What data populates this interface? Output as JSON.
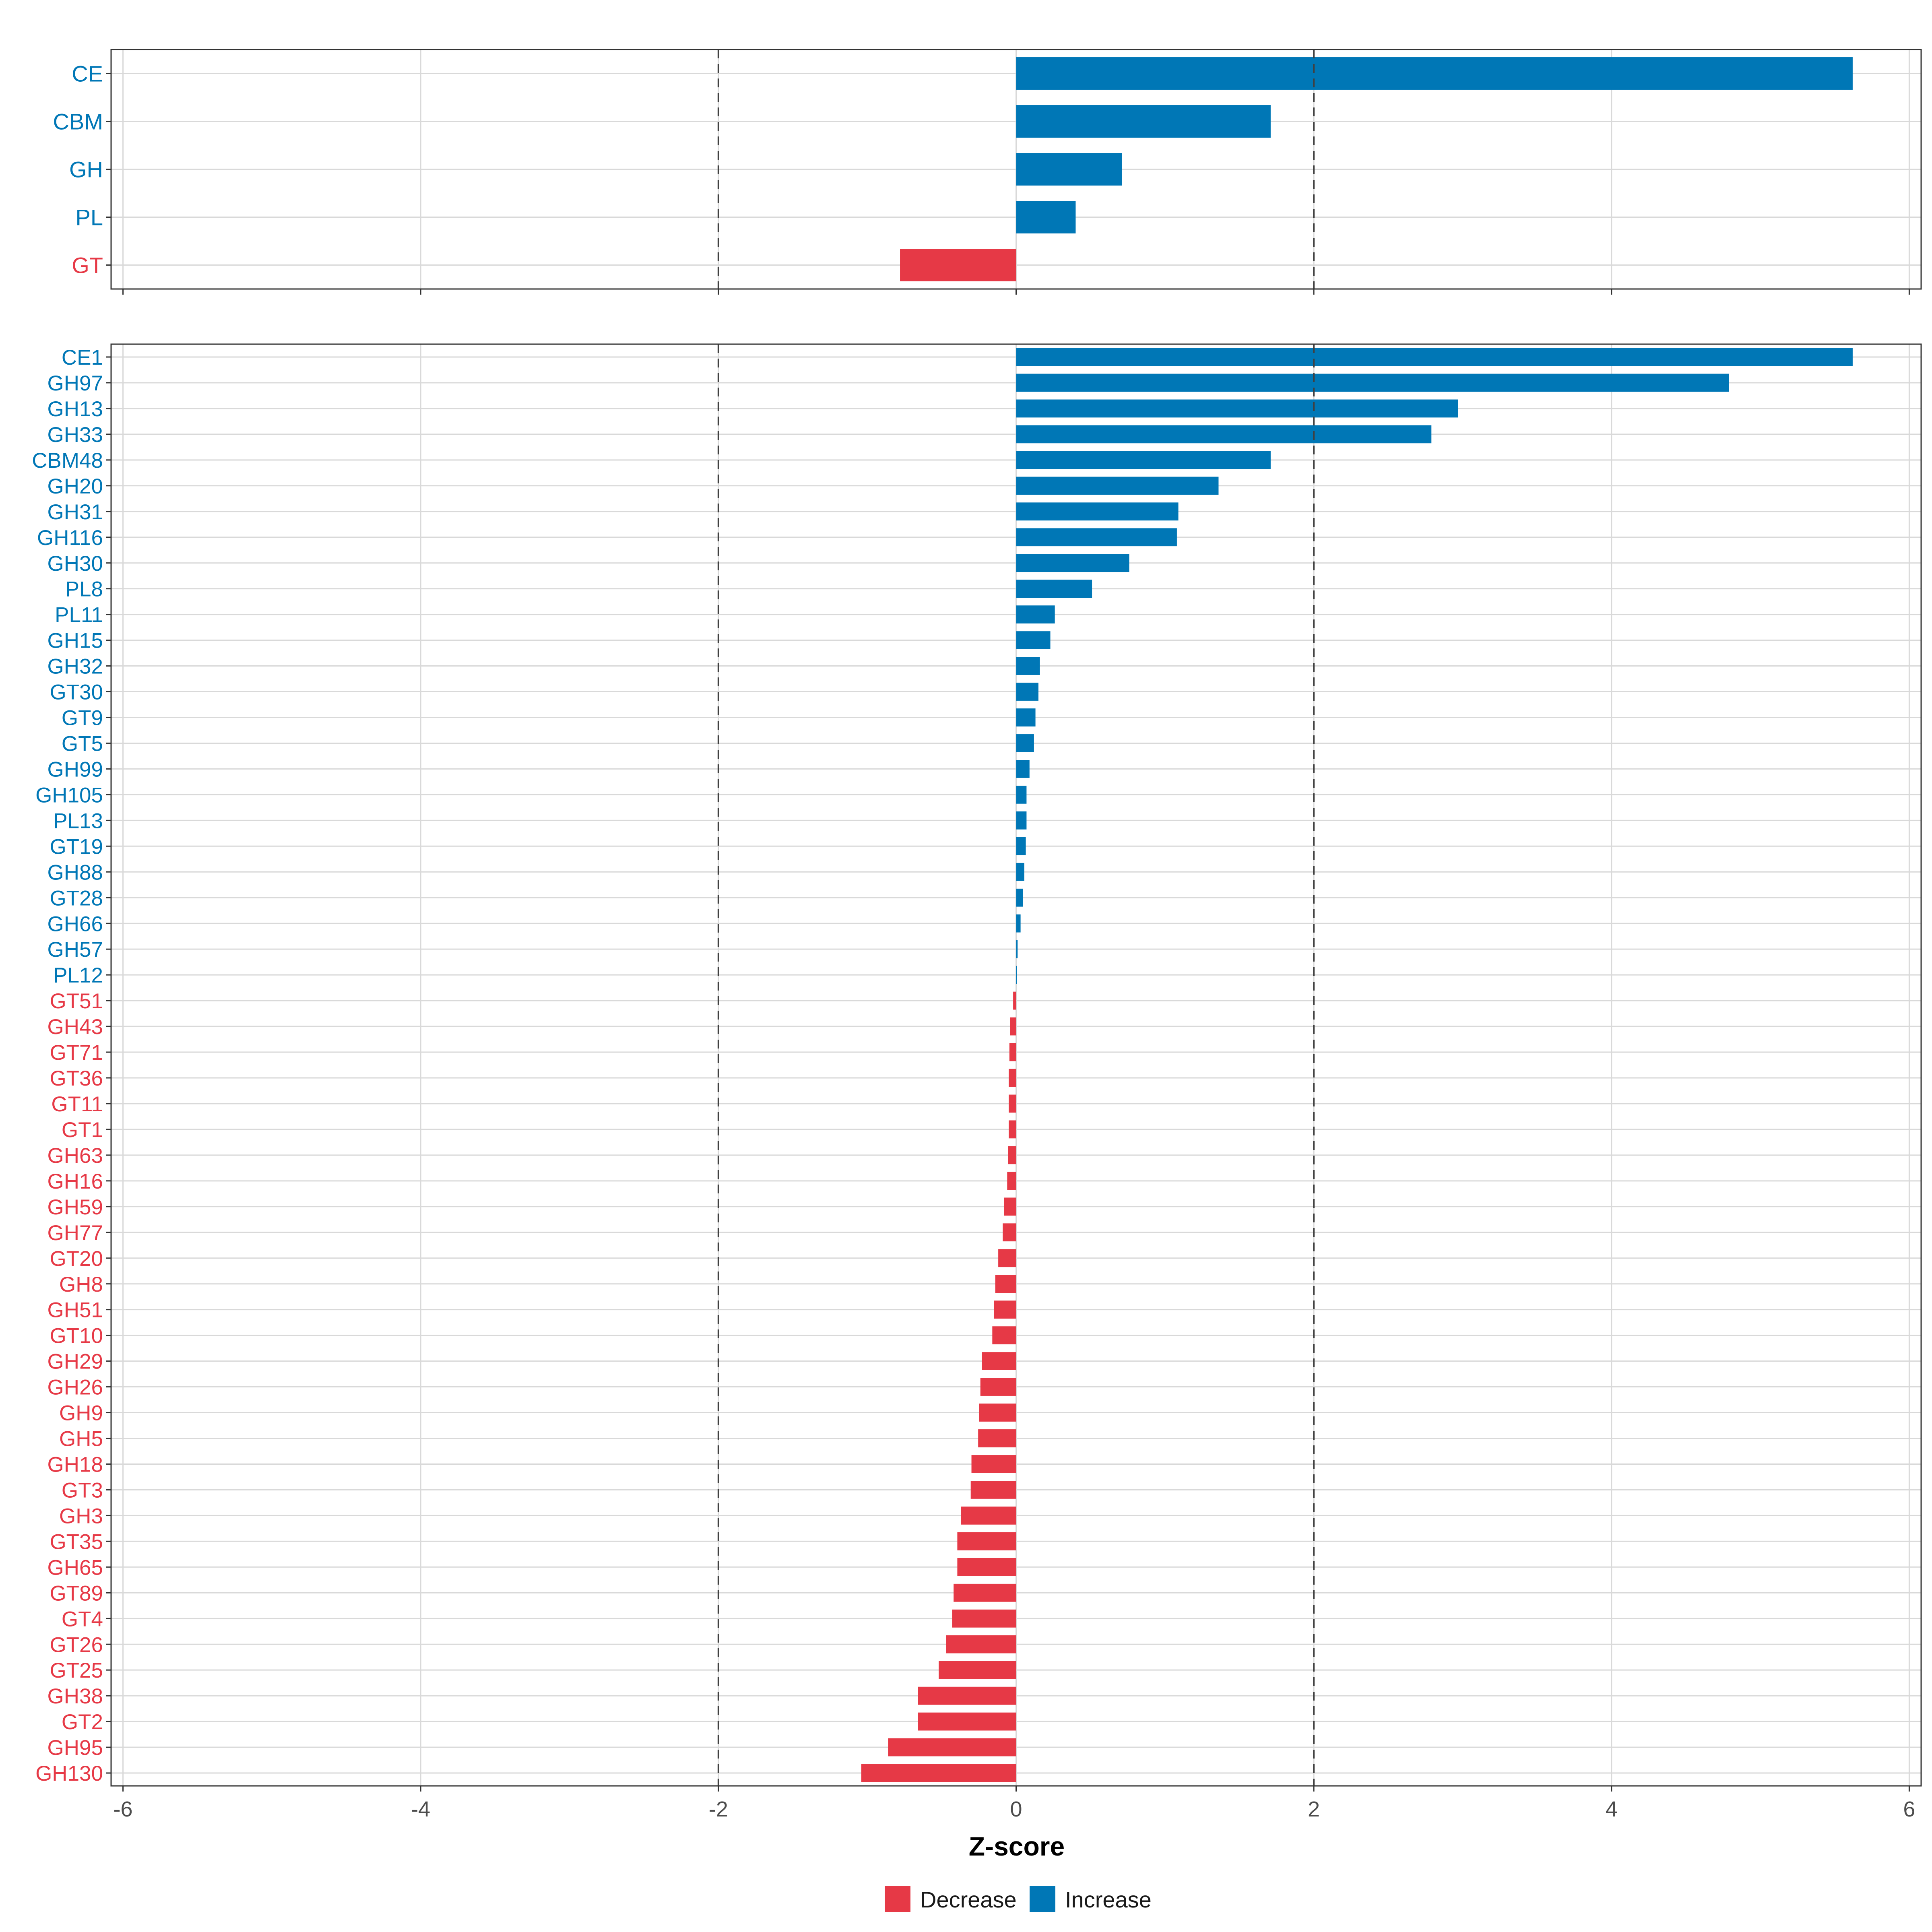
{
  "colors": {
    "increase": "#0077b6",
    "decrease": "#e63946",
    "grid": "#d9d9d9",
    "axis": "#333333",
    "background": "#ffffff"
  },
  "chart_data": [
    {
      "id": "class-panel",
      "type": "bar",
      "orientation": "horizontal",
      "categories": [
        "CE",
        "CBM",
        "GH",
        "PL",
        "GT"
      ],
      "values": [
        5.62,
        1.71,
        0.71,
        0.4,
        -0.78
      ],
      "xlim": [
        -6.08,
        6.08
      ],
      "xticks": [
        -6,
        -4,
        -2,
        0,
        2,
        4,
        6
      ],
      "reference_lines": [
        -2,
        2
      ],
      "show_x_tick_labels": false,
      "grid": true
    },
    {
      "id": "family-panel",
      "type": "bar",
      "orientation": "horizontal",
      "categories": [
        "CE1",
        "GH97",
        "GH13",
        "GH33",
        "CBM48",
        "GH20",
        "GH31",
        "GH116",
        "GH30",
        "PL8",
        "PL11",
        "GH15",
        "GH32",
        "GT30",
        "GT9",
        "GT5",
        "GH99",
        "GH105",
        "PL13",
        "GT19",
        "GH88",
        "GT28",
        "GH66",
        "GH57",
        "PL12",
        "GT51",
        "GH43",
        "GT71",
        "GT36",
        "GT11",
        "GT1",
        "GH63",
        "GH16",
        "GH59",
        "GH77",
        "GT20",
        "GH8",
        "GH51",
        "GT10",
        "GH29",
        "GH26",
        "GH9",
        "GH5",
        "GH18",
        "GT3",
        "GH3",
        "GT35",
        "GH65",
        "GT89",
        "GT4",
        "GT26",
        "GT25",
        "GH38",
        "GT2",
        "GH95",
        "GH130"
      ],
      "values": [
        5.62,
        4.79,
        2.97,
        2.79,
        1.71,
        1.36,
        1.09,
        1.08,
        0.76,
        0.51,
        0.26,
        0.23,
        0.16,
        0.15,
        0.13,
        0.12,
        0.09,
        0.07,
        0.07,
        0.065,
        0.055,
        0.045,
        0.03,
        0.01,
        0.005,
        -0.02,
        -0.04,
        -0.045,
        -0.05,
        -0.05,
        -0.05,
        -0.055,
        -0.06,
        -0.08,
        -0.09,
        -0.12,
        -0.14,
        -0.15,
        -0.16,
        -0.23,
        -0.24,
        -0.25,
        -0.255,
        -0.3,
        -0.305,
        -0.37,
        -0.395,
        -0.395,
        -0.42,
        -0.43,
        -0.47,
        -0.52,
        -0.66,
        -0.66,
        -0.86,
        -1.04
      ],
      "xlim": [
        -6.08,
        6.08
      ],
      "xticks": [
        -6,
        -4,
        -2,
        0,
        2,
        4,
        6
      ],
      "reference_lines": [
        -2,
        2
      ],
      "show_x_tick_labels": true,
      "grid": true
    }
  ],
  "xaxis": {
    "title": "Z-score",
    "tick_labels": [
      "-6",
      "-4",
      "-2",
      "0",
      "2",
      "4",
      "6"
    ]
  },
  "legend": {
    "position": "bottom",
    "entries": [
      {
        "key": "decrease",
        "label": "Decrease"
      },
      {
        "key": "increase",
        "label": "Increase"
      }
    ]
  }
}
